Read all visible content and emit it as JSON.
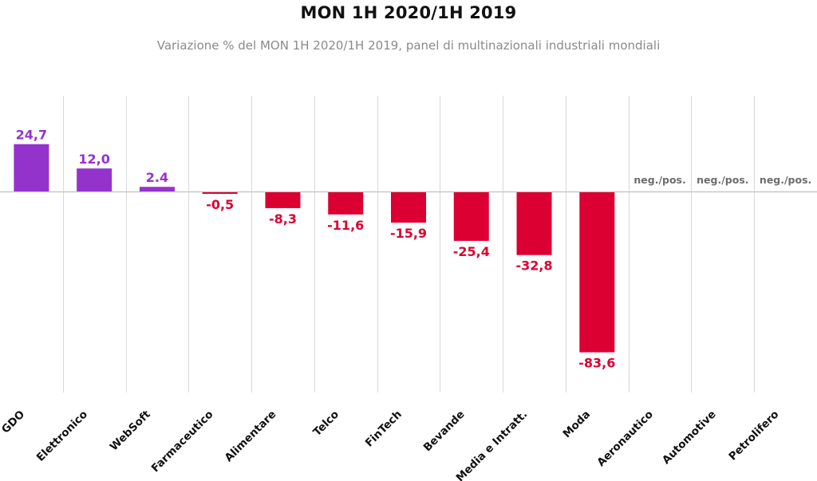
{
  "chart_data": {
    "type": "bar",
    "title": "MON 1H 2020/1H 2019",
    "subtitle": "Variazione % del MON 1H 2020/1H 2019, panel di multinazionali industriali mondiali",
    "categories": [
      "GDO",
      "Elettronico",
      "WebSoft",
      "Farmaceutico",
      "Alimentare",
      "Telco",
      "FinTech",
      "Bevande",
      "Media e Intratt.",
      "Moda",
      "Aeronautico",
      "Automotive",
      "Petrolifero"
    ],
    "values": [
      24.7,
      12.0,
      2.4,
      -0.5,
      -8.3,
      -11.6,
      -15.9,
      -25.4,
      -32.8,
      -83.6,
      null,
      null,
      null
    ],
    "data_labels": [
      "24,7",
      "12,0",
      "2.4",
      "-0,5",
      "-8,3",
      "-11,6",
      "-15,9",
      "-25,4",
      "-32,8",
      "-83,6",
      "neg./pos.",
      "neg./pos.",
      "neg./pos."
    ],
    "xlabel": "",
    "ylabel": "",
    "legend": "none",
    "grid": "vertical separators between categories",
    "colors": {
      "positive": "#9433cc",
      "negative": "#dc0032",
      "note": "#6d6d6d",
      "axis": "#c8c8c8",
      "gridline": "#d9d9d9"
    }
  }
}
